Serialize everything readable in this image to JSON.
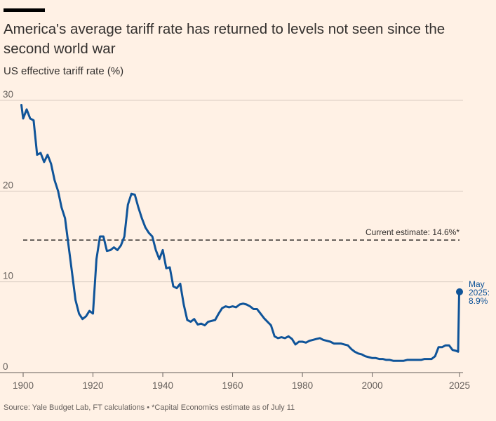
{
  "title": "America's average tariff rate has returned to levels not seen since the second world war",
  "subtitle": "US effective tariff rate (%)",
  "source": "Source: Yale Budget Lab, FT calculations • *Capital Economics estimate as of July 11",
  "colors": {
    "background": "#FFF1E5",
    "line": "#0F5499",
    "grid": "#D9CCC1",
    "reference": "#33302E"
  },
  "chart_data": {
    "type": "line",
    "title": "America's average tariff rate has returned to levels not seen since the second world war",
    "ylabel": "US effective tariff rate (%)",
    "xlim": [
      1900,
      2025
    ],
    "ylim": [
      0,
      30
    ],
    "grid": true,
    "x_ticks": [
      "1900",
      "1920",
      "1940",
      "1960",
      "1980",
      "2000",
      "2025"
    ],
    "y_ticks": [
      "0",
      "10",
      "20",
      "30"
    ],
    "reference_line": {
      "value": 14.6,
      "label": "Current estimate: 14.6%*",
      "style": "dashed"
    },
    "end_label": {
      "lines": [
        "May",
        "2025:",
        "8.9%"
      ],
      "x": 2025,
      "y": 8.9
    },
    "series": [
      {
        "points": [
          [
            1899.5,
            29.5
          ],
          [
            1900,
            28
          ],
          [
            1901,
            29
          ],
          [
            1902,
            28
          ],
          [
            1903,
            27.8
          ],
          [
            1904,
            24
          ],
          [
            1905,
            24.2
          ],
          [
            1906,
            23.2
          ],
          [
            1907,
            24
          ],
          [
            1908,
            23
          ],
          [
            1909,
            21.2
          ],
          [
            1910,
            20
          ],
          [
            1911,
            18.2
          ],
          [
            1912,
            17
          ],
          [
            1913,
            14
          ],
          [
            1914,
            11
          ],
          [
            1915,
            8
          ],
          [
            1916,
            6.5
          ],
          [
            1917,
            5.9
          ],
          [
            1918,
            6.2
          ],
          [
            1919,
            6.8
          ],
          [
            1920,
            6.5
          ],
          [
            1921,
            12.5
          ],
          [
            1922,
            15
          ],
          [
            1923,
            15
          ],
          [
            1924,
            13.4
          ],
          [
            1925,
            13.5
          ],
          [
            1926,
            13.8
          ],
          [
            1927,
            13.5
          ],
          [
            1928,
            14
          ],
          [
            1929,
            15
          ],
          [
            1930,
            18.5
          ],
          [
            1931,
            19.7
          ],
          [
            1932,
            19.6
          ],
          [
            1933,
            18.2
          ],
          [
            1934,
            17
          ],
          [
            1935,
            16
          ],
          [
            1936,
            15.4
          ],
          [
            1937,
            15
          ],
          [
            1938,
            13.5
          ],
          [
            1939,
            12.5
          ],
          [
            1940,
            13.5
          ],
          [
            1941,
            11.5
          ],
          [
            1942,
            11.6
          ],
          [
            1943,
            9.5
          ],
          [
            1944,
            9.3
          ],
          [
            1945,
            9.8
          ],
          [
            1946,
            7.5
          ],
          [
            1947,
            5.8
          ],
          [
            1948,
            5.6
          ],
          [
            1949,
            5.9
          ],
          [
            1950,
            5.3
          ],
          [
            1951,
            5.4
          ],
          [
            1952,
            5.2
          ],
          [
            1953,
            5.6
          ],
          [
            1954,
            5.7
          ],
          [
            1955,
            5.8
          ],
          [
            1956,
            6.5
          ],
          [
            1957,
            7.1
          ],
          [
            1958,
            7.3
          ],
          [
            1959,
            7.2
          ],
          [
            1960,
            7.3
          ],
          [
            1961,
            7.2
          ],
          [
            1962,
            7.5
          ],
          [
            1963,
            7.6
          ],
          [
            1964,
            7.5
          ],
          [
            1965,
            7.3
          ],
          [
            1966,
            7.0
          ],
          [
            1967,
            7.0
          ],
          [
            1968,
            6.5
          ],
          [
            1969,
            6.0
          ],
          [
            1970,
            5.6
          ],
          [
            1971,
            5.2
          ],
          [
            1972,
            4.0
          ],
          [
            1973,
            3.8
          ],
          [
            1974,
            3.9
          ],
          [
            1975,
            3.8
          ],
          [
            1976,
            4.0
          ],
          [
            1977,
            3.7
          ],
          [
            1978,
            3.1
          ],
          [
            1979,
            3.4
          ],
          [
            1980,
            3.4
          ],
          [
            1981,
            3.3
          ],
          [
            1982,
            3.5
          ],
          [
            1983,
            3.6
          ],
          [
            1984,
            3.7
          ],
          [
            1985,
            3.8
          ],
          [
            1986,
            3.6
          ],
          [
            1987,
            3.5
          ],
          [
            1988,
            3.4
          ],
          [
            1989,
            3.2
          ],
          [
            1990,
            3.2
          ],
          [
            1991,
            3.2
          ],
          [
            1992,
            3.1
          ],
          [
            1993,
            3.0
          ],
          [
            1994,
            2.6
          ],
          [
            1995,
            2.3
          ],
          [
            1996,
            2.1
          ],
          [
            1997,
            2.0
          ],
          [
            1998,
            1.8
          ],
          [
            1999,
            1.7
          ],
          [
            2000,
            1.6
          ],
          [
            2001,
            1.6
          ],
          [
            2002,
            1.5
          ],
          [
            2003,
            1.5
          ],
          [
            2004,
            1.4
          ],
          [
            2005,
            1.4
          ],
          [
            2006,
            1.3
          ],
          [
            2007,
            1.3
          ],
          [
            2008,
            1.3
          ],
          [
            2009,
            1.3
          ],
          [
            2010,
            1.4
          ],
          [
            2011,
            1.4
          ],
          [
            2012,
            1.4
          ],
          [
            2013,
            1.4
          ],
          [
            2014,
            1.4
          ],
          [
            2015,
            1.5
          ],
          [
            2016,
            1.5
          ],
          [
            2017,
            1.5
          ],
          [
            2018,
            1.8
          ],
          [
            2019,
            2.8
          ],
          [
            2020,
            2.8
          ],
          [
            2021,
            3.0
          ],
          [
            2022,
            3.0
          ],
          [
            2023,
            2.5
          ],
          [
            2024,
            2.4
          ],
          [
            2024.6,
            2.3
          ],
          [
            2024.9,
            8.9
          ]
        ]
      }
    ]
  }
}
